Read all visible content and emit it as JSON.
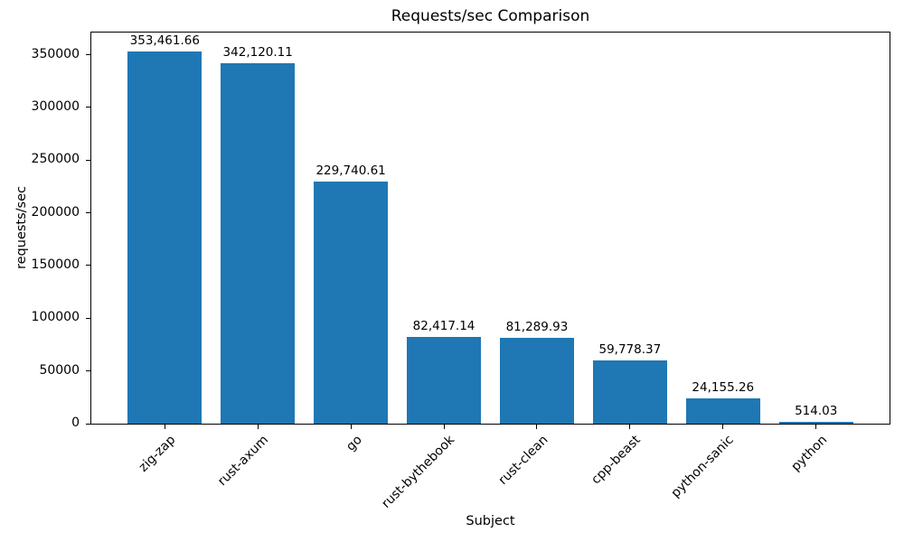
{
  "chart_data": {
    "type": "bar",
    "title": "Requests/sec Comparison",
    "xlabel": "Subject",
    "ylabel": "requests/sec",
    "categories": [
      "zig-zap",
      "rust-axum",
      "go",
      "rust-bythebook",
      "rust-clean",
      "cpp-beast",
      "python-sanic",
      "python"
    ],
    "values": [
      353461.66,
      342120.11,
      229740.61,
      82417.14,
      81289.93,
      59778.37,
      24155.26,
      514.03
    ],
    "value_labels": [
      "353,461.66",
      "342,120.11",
      "229,740.61",
      "82,417.14",
      "81,289.93",
      "59,778.37",
      "24,155.26",
      "514.03"
    ],
    "yticks": [
      0,
      50000,
      100000,
      150000,
      200000,
      250000,
      300000,
      350000
    ],
    "ytick_labels": [
      "0",
      "50000",
      "100000",
      "150000",
      "200000",
      "250000",
      "300000",
      "350000"
    ],
    "ylim": [
      0,
      371134
    ],
    "bar_color": "#1f77b4",
    "axis_color": "#000000",
    "grid": false,
    "legend": null,
    "xtick_rotation": 45
  }
}
